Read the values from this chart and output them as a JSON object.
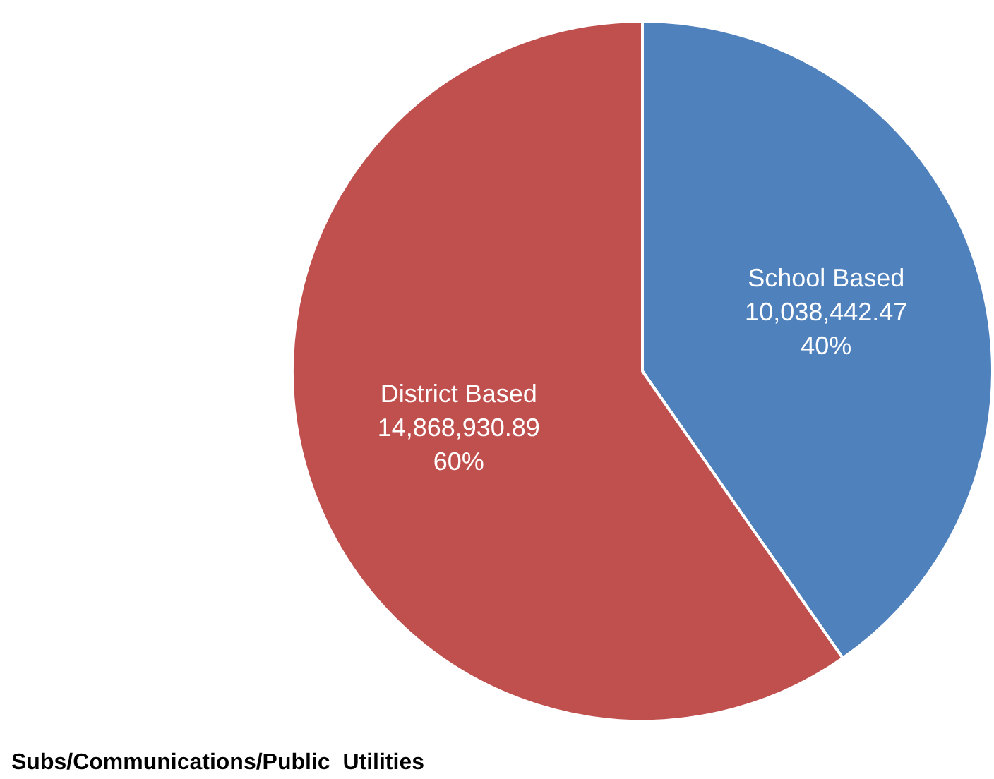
{
  "chart_data": {
    "type": "pie",
    "title": "Subs/Communications/Public  Utilities",
    "categories": [
      "School Based",
      "District Based"
    ],
    "values": [
      10038442.47,
      14868930.89
    ],
    "colors": [
      "#4f81bd",
      "#c0504d"
    ],
    "value_labels": [
      "10,038,442.47",
      "14,868,930.89"
    ],
    "annotations": [
      "40%",
      "60%"
    ],
    "legend": false
  }
}
